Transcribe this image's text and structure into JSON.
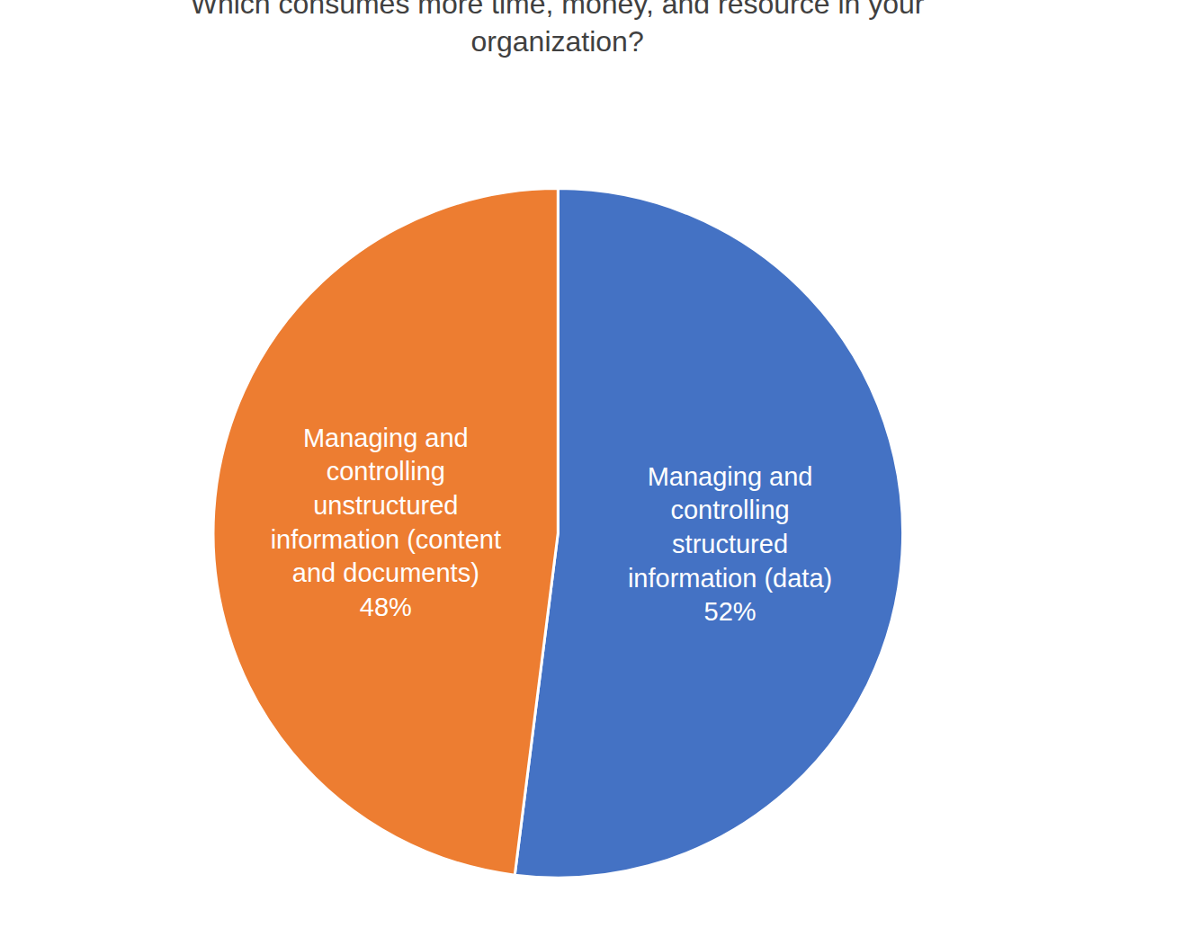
{
  "chart_data": {
    "type": "pie",
    "title": "Which consumes more time, money, and resource in your organization?",
    "categories": [
      "Managing and controlling structured information (data)",
      "Managing and controlling unstructured information (content and documents)"
    ],
    "values": [
      52,
      48
    ],
    "value_labels": [
      "52%",
      "48%"
    ],
    "colors": [
      "#4472c4",
      "#ed7d31"
    ],
    "data_labels": true
  }
}
